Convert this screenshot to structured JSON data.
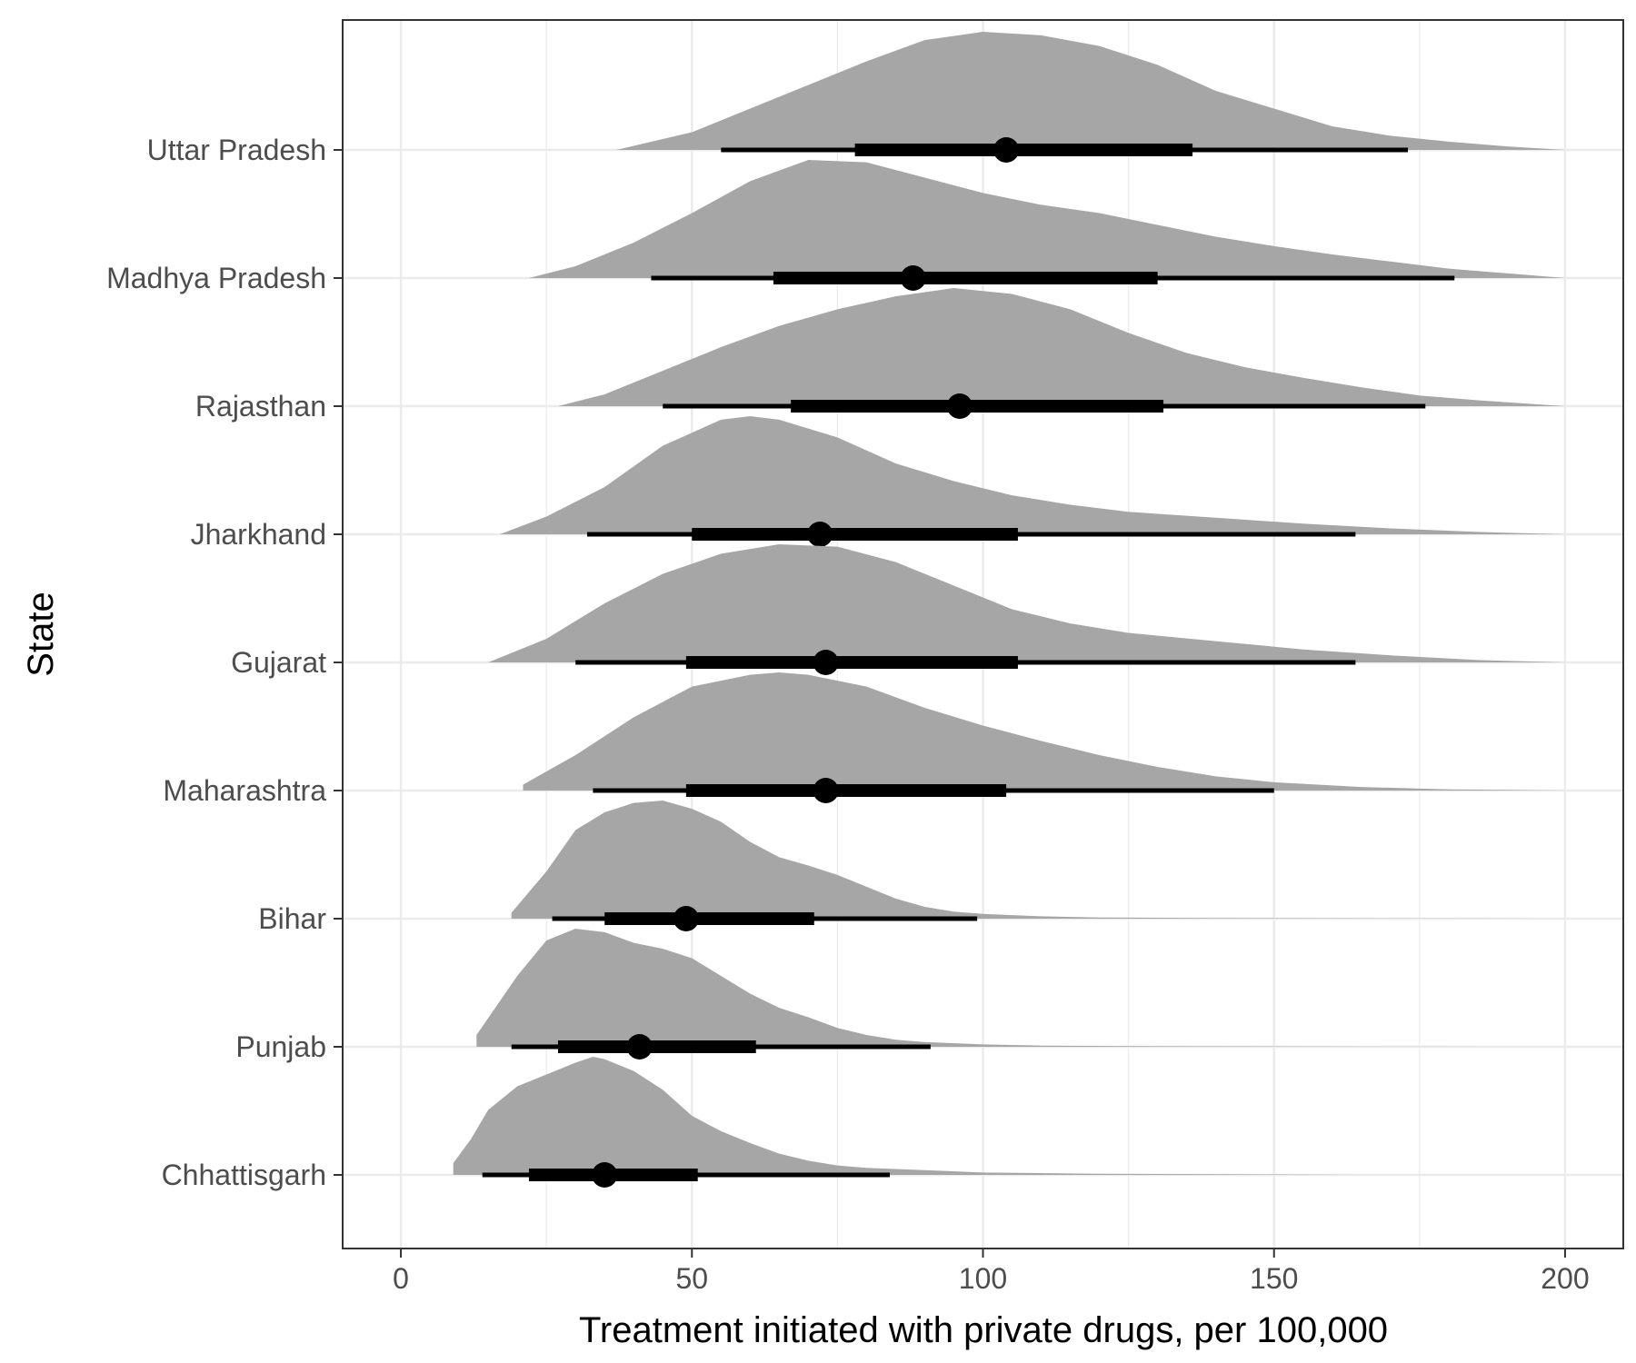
{
  "chart_data": {
    "type": "halfeye",
    "xlabel": "Treatment initiated with private drugs, per 100,000",
    "ylabel": "State",
    "xlim": [
      -10,
      210
    ],
    "x_ticks": [
      0,
      50,
      100,
      150,
      200
    ],
    "grid": true,
    "legend": "none",
    "colors": {
      "density": "#a6a6a6",
      "interval": "#000000",
      "grid": "#ebebeb",
      "panel_border": "#333333"
    },
    "categories": [
      "Uttar Pradesh",
      "Madhya Pradesh",
      "Rajasthan",
      "Jharkhand",
      "Gujarat",
      "Maharashtra",
      "Bihar",
      "Punjab",
      "Chhattisgarh"
    ],
    "series": [
      {
        "category": "Uttar Pradesh",
        "point": 104,
        "interval_66": [
          78,
          136
        ],
        "interval_95": [
          55,
          173
        ],
        "range": [
          37,
          200
        ],
        "density_x": [
          37,
          50,
          60,
          70,
          80,
          90,
          100,
          110,
          120,
          130,
          140,
          150,
          160,
          170,
          180,
          190,
          200
        ],
        "density_y": [
          0.0,
          0.15,
          0.35,
          0.55,
          0.75,
          0.93,
          1.0,
          0.97,
          0.88,
          0.72,
          0.5,
          0.35,
          0.2,
          0.12,
          0.07,
          0.03,
          0.0
        ]
      },
      {
        "category": "Madhya Pradesh",
        "point": 88,
        "interval_66": [
          64,
          130
        ],
        "interval_95": [
          43,
          181
        ],
        "range": [
          22,
          200
        ],
        "density_x": [
          22,
          30,
          40,
          50,
          60,
          70,
          80,
          90,
          100,
          110,
          120,
          130,
          140,
          150,
          160,
          170,
          180,
          190,
          200
        ],
        "density_y": [
          0.0,
          0.1,
          0.3,
          0.55,
          0.82,
          1.0,
          0.98,
          0.85,
          0.72,
          0.62,
          0.55,
          0.45,
          0.35,
          0.27,
          0.2,
          0.14,
          0.08,
          0.04,
          0.0
        ]
      },
      {
        "category": "Rajasthan",
        "point": 96,
        "interval_66": [
          67,
          131
        ],
        "interval_95": [
          45,
          176
        ],
        "range": [
          27,
          200
        ],
        "density_x": [
          27,
          35,
          45,
          55,
          65,
          75,
          85,
          95,
          105,
          115,
          125,
          135,
          145,
          155,
          165,
          175,
          185,
          200
        ],
        "density_y": [
          0.0,
          0.1,
          0.3,
          0.5,
          0.68,
          0.82,
          0.93,
          1.0,
          0.95,
          0.82,
          0.62,
          0.45,
          0.33,
          0.24,
          0.16,
          0.09,
          0.05,
          0.0
        ]
      },
      {
        "category": "Jharkhand",
        "point": 72,
        "interval_66": [
          50,
          106
        ],
        "interval_95": [
          32,
          164
        ],
        "range": [
          17,
          200
        ],
        "density_x": [
          17,
          25,
          35,
          45,
          55,
          60,
          65,
          75,
          85,
          95,
          105,
          115,
          125,
          140,
          155,
          170,
          185,
          200
        ],
        "density_y": [
          0.0,
          0.15,
          0.4,
          0.75,
          0.97,
          1.0,
          0.97,
          0.82,
          0.6,
          0.45,
          0.33,
          0.25,
          0.19,
          0.14,
          0.09,
          0.05,
          0.02,
          0.0
        ]
      },
      {
        "category": "Gujarat",
        "point": 73,
        "interval_66": [
          49,
          106
        ],
        "interval_95": [
          30,
          164
        ],
        "range": [
          15,
          200
        ],
        "density_x": [
          15,
          25,
          35,
          45,
          55,
          65,
          75,
          85,
          95,
          105,
          115,
          125,
          140,
          155,
          170,
          185,
          200
        ],
        "density_y": [
          0.0,
          0.2,
          0.5,
          0.75,
          0.92,
          1.0,
          0.98,
          0.85,
          0.65,
          0.45,
          0.33,
          0.25,
          0.18,
          0.11,
          0.06,
          0.02,
          0.0
        ]
      },
      {
        "category": "Maharashtra",
        "point": 73,
        "interval_66": [
          49,
          104
        ],
        "interval_95": [
          33,
          150
        ],
        "range": [
          21,
          200
        ],
        "density_x": [
          21,
          30,
          40,
          50,
          60,
          65,
          70,
          80,
          90,
          100,
          110,
          120,
          130,
          140,
          150,
          165,
          180,
          200
        ],
        "density_y": [
          0.05,
          0.3,
          0.62,
          0.88,
          0.98,
          1.0,
          0.98,
          0.88,
          0.7,
          0.55,
          0.42,
          0.3,
          0.2,
          0.12,
          0.07,
          0.03,
          0.01,
          0.0
        ]
      },
      {
        "category": "Bihar",
        "point": 49,
        "interval_66": [
          35,
          71
        ],
        "interval_95": [
          26,
          99
        ],
        "range": [
          19,
          195
        ],
        "density_x": [
          19,
          25,
          30,
          35,
          40,
          45,
          50,
          55,
          60,
          65,
          70,
          75,
          80,
          85,
          90,
          95,
          100,
          110,
          120,
          140,
          170,
          195
        ],
        "density_y": [
          0.05,
          0.4,
          0.75,
          0.9,
          0.98,
          1.0,
          0.93,
          0.82,
          0.65,
          0.52,
          0.45,
          0.37,
          0.27,
          0.17,
          0.1,
          0.06,
          0.04,
          0.02,
          0.01,
          0.005,
          0.002,
          0.0
        ]
      },
      {
        "category": "Punjab",
        "point": 41,
        "interval_66": [
          27,
          61
        ],
        "interval_95": [
          19,
          91
        ],
        "range": [
          13,
          200
        ],
        "density_x": [
          13,
          20,
          25,
          30,
          35,
          40,
          45,
          50,
          55,
          60,
          65,
          70,
          75,
          80,
          85,
          90,
          100,
          110,
          125,
          150,
          175,
          200
        ],
        "density_y": [
          0.1,
          0.6,
          0.9,
          1.0,
          0.97,
          0.88,
          0.83,
          0.75,
          0.6,
          0.45,
          0.33,
          0.25,
          0.16,
          0.1,
          0.06,
          0.04,
          0.02,
          0.01,
          0.005,
          0.003,
          0.001,
          0.0
        ]
      },
      {
        "category": "Chhattisgarh",
        "point": 35,
        "interval_66": [
          22,
          51
        ],
        "interval_95": [
          14,
          84
        ],
        "range": [
          9,
          165
        ],
        "density_x": [
          9,
          12,
          15,
          20,
          25,
          30,
          33,
          35,
          40,
          45,
          50,
          55,
          60,
          65,
          70,
          75,
          80,
          90,
          100,
          120,
          140,
          165
        ],
        "density_y": [
          0.1,
          0.3,
          0.55,
          0.75,
          0.85,
          0.95,
          1.0,
          0.98,
          0.88,
          0.72,
          0.5,
          0.37,
          0.27,
          0.18,
          0.12,
          0.08,
          0.06,
          0.04,
          0.02,
          0.01,
          0.005,
          0.0
        ]
      }
    ]
  }
}
